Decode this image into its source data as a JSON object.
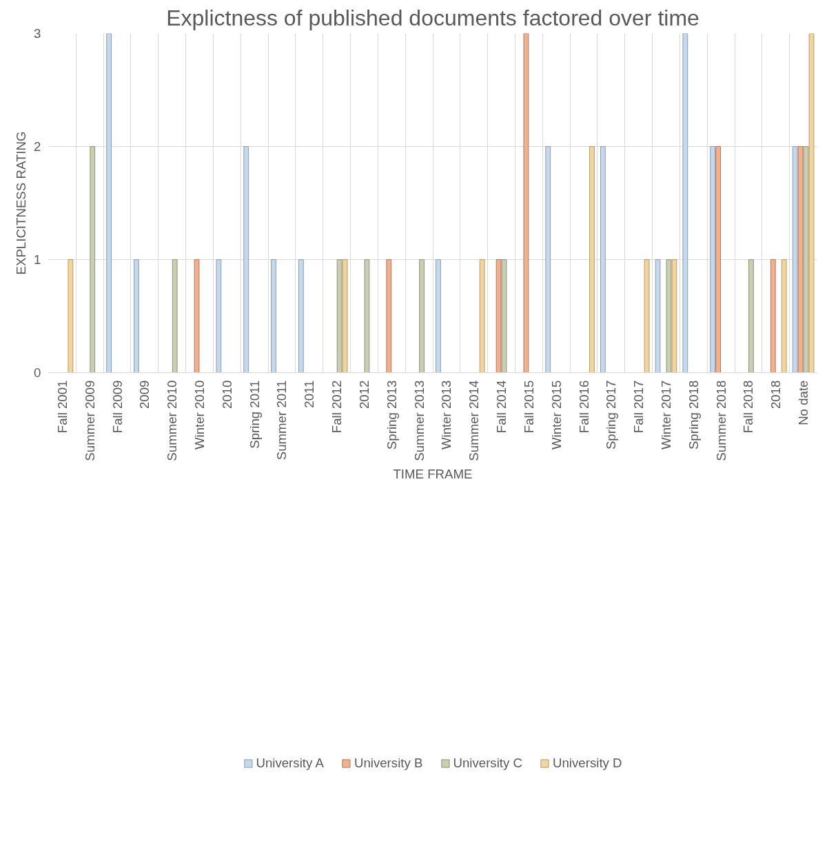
{
  "chart_data": {
    "type": "bar",
    "title": "Explictness of published documents factored over time",
    "xlabel": "TIME FRAME",
    "ylabel": "EXPLICITNESS RATING",
    "categories": [
      "Fall 2001",
      "Summer 2009",
      "Fall 2009",
      "2009",
      "Summer 2010",
      "Winter 2010",
      "2010",
      "Spring 2011",
      "Summer 2011",
      "2011",
      "Fall 2012",
      "2012",
      "Spring 2013",
      "Summer 2013",
      "Winter 2013",
      "Summer 2014",
      "Fall 2014",
      "Fall 2015",
      "Winter 2015",
      "Fall 2016",
      "Spring 2017",
      "Fall 2017",
      "Winter 2017",
      "Spring 2018",
      "Summer 2018",
      "Fall 2018",
      "2018",
      "No date"
    ],
    "series": [
      {
        "name": "University A",
        "color": "#c5d9ee",
        "values": [
          null,
          null,
          3,
          1,
          null,
          null,
          1,
          2,
          1,
          1,
          null,
          null,
          null,
          null,
          1,
          null,
          null,
          null,
          2,
          null,
          2,
          null,
          1,
          3,
          2,
          null,
          null,
          2
        ]
      },
      {
        "name": "University B",
        "color": "#f3b08e",
        "values": [
          null,
          null,
          null,
          null,
          null,
          1,
          null,
          null,
          null,
          null,
          null,
          null,
          1,
          null,
          null,
          null,
          1,
          3,
          null,
          null,
          null,
          null,
          null,
          null,
          2,
          null,
          1,
          2
        ]
      },
      {
        "name": "University C",
        "color": "#c8cfb2",
        "values": [
          null,
          2,
          null,
          null,
          1,
          null,
          null,
          null,
          null,
          null,
          1,
          1,
          null,
          1,
          null,
          null,
          1,
          null,
          null,
          null,
          null,
          null,
          1,
          null,
          null,
          1,
          null,
          2
        ]
      },
      {
        "name": "University D",
        "color": "#f2d59c",
        "values": [
          1,
          null,
          null,
          null,
          null,
          null,
          null,
          null,
          null,
          null,
          1,
          null,
          null,
          null,
          null,
          1,
          null,
          null,
          null,
          2,
          null,
          1,
          1,
          null,
          null,
          null,
          1,
          3
        ]
      }
    ],
    "ylim": [
      0,
      3
    ],
    "yticks": [
      0,
      1,
      2,
      3
    ],
    "grid": true,
    "legend": "bottom"
  }
}
